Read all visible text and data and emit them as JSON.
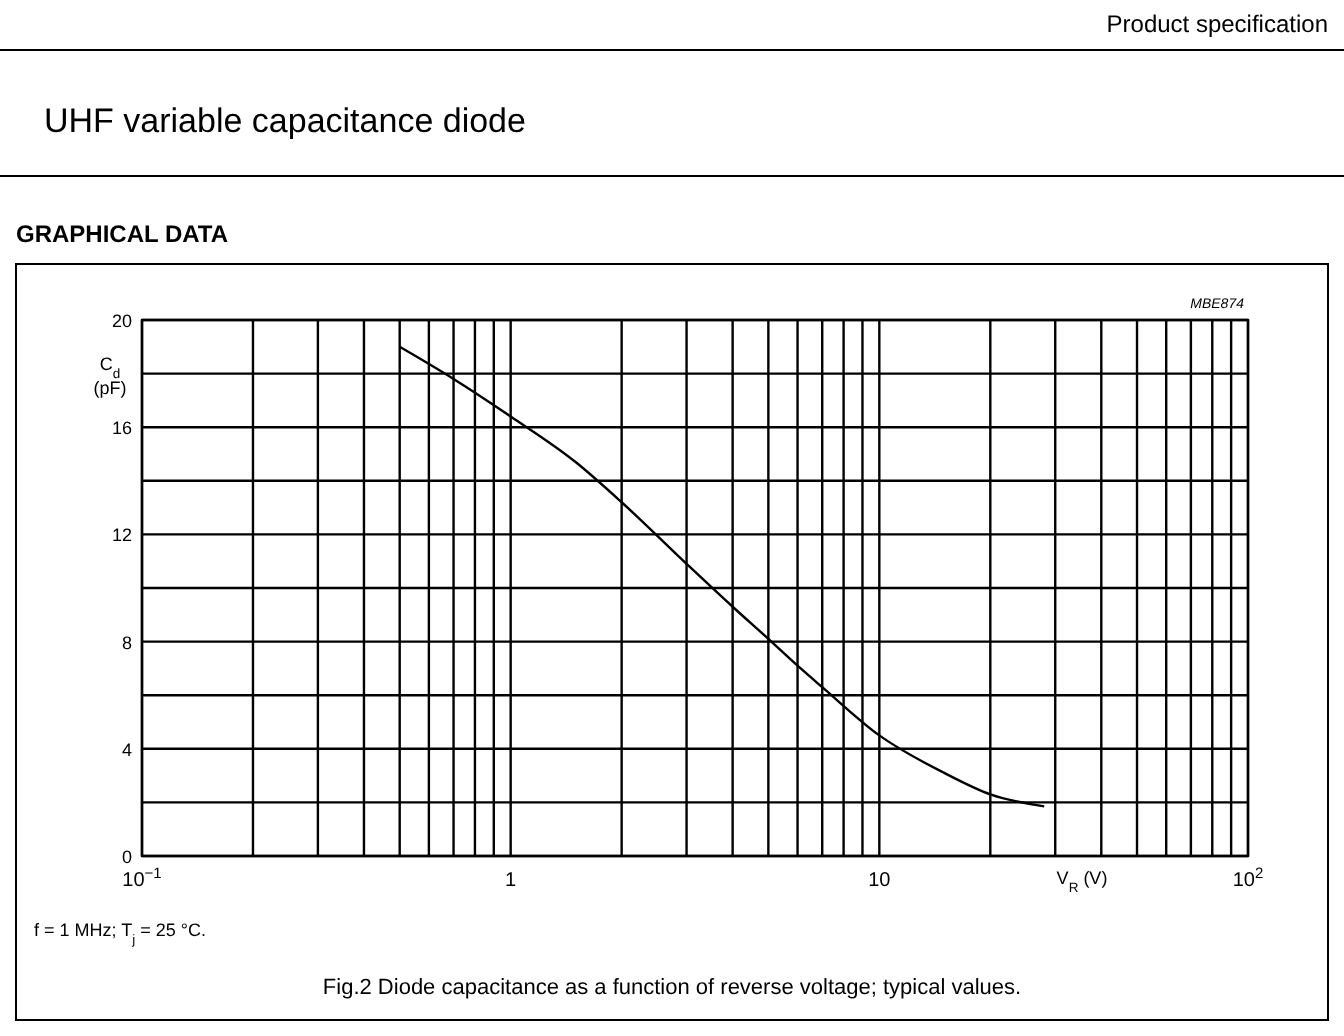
{
  "chart_data": {
    "type": "line",
    "title": "UHF variable capacitance diode",
    "subtitle": "GRAPHICAL DATA",
    "xlabel": "V$_{R}$ (V)",
    "ylabel": "C$_{d}$ (pF)",
    "log": "x",
    "grid": true,
    "marker": "none",
    "line_style": "solid",
    "xlim": [
      0.1,
      100
    ],
    "xticks": [
      {
        "value": 0.1,
        "label": "10$^{−1}$"
      },
      {
        "value": 0.2,
        "label": null
      },
      {
        "value": 0.3,
        "label": null
      },
      {
        "value": 0.4,
        "label": null
      },
      {
        "value": 0.5,
        "label": null
      },
      {
        "value": 0.6,
        "label": null
      },
      {
        "value": 0.7,
        "label": null
      },
      {
        "value": 0.8,
        "label": null
      },
      {
        "value": 0.9,
        "label": null
      },
      1,
      {
        "value": 2,
        "label": null
      },
      {
        "value": 3,
        "label": null
      },
      {
        "value": 4,
        "label": null
      },
      {
        "value": 5,
        "label": null
      },
      {
        "value": 6,
        "label": null
      },
      {
        "value": 7,
        "label": null
      },
      {
        "value": 8,
        "label": null
      },
      {
        "value": 9,
        "label": null
      },
      10,
      {
        "value": 20,
        "label": null
      },
      {
        "value": 30,
        "label": null
      },
      {
        "value": 40,
        "label": null
      },
      {
        "value": 50,
        "label": null
      },
      {
        "value": 60,
        "label": null
      },
      {
        "value": 70,
        "label": null
      },
      {
        "value": 80,
        "label": null
      },
      {
        "value": 90,
        "label": null
      },
      {
        "value": 100,
        "label": "10$^{2}$"
      }
    ],
    "ylim": [
      0,
      20
    ],
    "yticks": [
      0,
      {
        "value": 2,
        "label": null
      },
      4,
      {
        "value": 6,
        "label": null
      },
      8,
      {
        "value": 10,
        "label": null
      },
      12,
      {
        "value": 14,
        "label": null
      },
      16,
      {
        "value": 18,
        "label": null
      },
      20
    ],
    "series": [
      {
        "color": "#000000",
        "x": [
          0.5,
          0.7,
          1,
          1.5,
          2,
          3,
          4,
          5,
          6,
          7,
          10,
          15,
          20,
          28
        ],
        "values": [
          19.0,
          17.8,
          16.4,
          14.7,
          13.2,
          10.9,
          9.3,
          8.1,
          7.1,
          6.3,
          4.5,
          3.1,
          2.3,
          1.85
        ]
      }
    ],
    "annotations": [
      "Product specification",
      "MBE874",
      "f = 1 MHz; T$_{j}$ = 25 °C.",
      "Fig.2  Diode capacitance as a function of reverse voltage; typical values."
    ]
  }
}
